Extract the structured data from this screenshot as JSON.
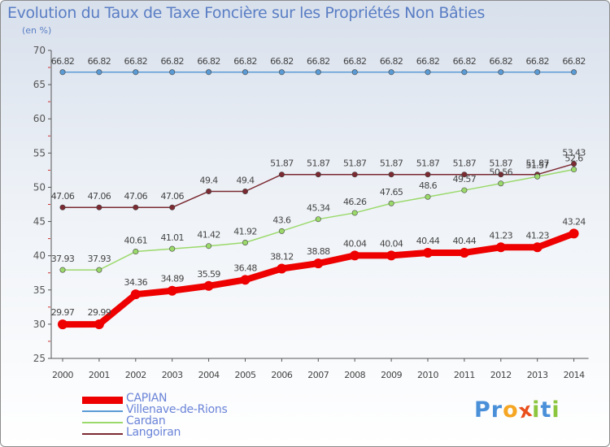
{
  "chart_data": {
    "type": "line",
    "title": "Evolution du Taux de Taxe Foncière sur les Propriétés Non Bâties",
    "unit_label": "(en %)",
    "ylim": [
      25,
      70
    ],
    "yticks": [
      25,
      30,
      35,
      40,
      45,
      50,
      55,
      60,
      65,
      70
    ],
    "categories": [
      "2000",
      "2001",
      "2002",
      "2003",
      "2004",
      "2005",
      "2006",
      "2007",
      "2008",
      "2009",
      "2010",
      "2011",
      "2012",
      "2013",
      "2014"
    ],
    "grid": false,
    "legend_placement": "bottom-left",
    "series": [
      {
        "name": "Villenave-de-Rions",
        "color": "#5b9bd5",
        "values": [
          66.82,
          66.82,
          66.82,
          66.82,
          66.82,
          66.82,
          66.82,
          66.82,
          66.82,
          66.82,
          66.82,
          66.82,
          66.82,
          66.82,
          66.82
        ],
        "labels": [
          "66.82",
          "66.82",
          "66.82",
          "66.82",
          "66.82",
          "66.82",
          "66.82",
          "66.82",
          "66.82",
          "66.82",
          "66.82",
          "66.82",
          "66.82",
          "66.82",
          "66.82"
        ]
      },
      {
        "name": "Langoiran",
        "color": "#7b2a32",
        "values": [
          47.06,
          47.06,
          47.06,
          47.06,
          49.4,
          49.4,
          51.87,
          51.87,
          51.87,
          51.87,
          51.87,
          51.87,
          51.87,
          51.87,
          53.43
        ],
        "labels": [
          "47.06",
          "47.06",
          "47.06",
          "47.06",
          "49.4",
          "49.4",
          "51.87",
          "51.87",
          "51.87",
          "51.87",
          "51.87",
          "51.87",
          "51.87",
          "51.87",
          "53.43"
        ]
      },
      {
        "name": "Cardan",
        "color": "#9bd96b",
        "values": [
          37.93,
          37.93,
          40.61,
          41.01,
          41.42,
          41.92,
          43.6,
          45.34,
          46.26,
          47.65,
          48.6,
          49.57,
          50.56,
          51.57,
          52.6
        ],
        "labels": [
          "37.93",
          "37.93",
          "40.61",
          "41.01",
          "41.42",
          "41.92",
          "43.6",
          "45.34",
          "46.26",
          "47.65",
          "48.6",
          "49.57",
          "50.56",
          "51.57",
          "52.6"
        ]
      },
      {
        "name": "CAPIAN",
        "color": "#ee0000",
        "values": [
          29.97,
          29.99,
          34.36,
          34.89,
          35.59,
          36.48,
          38.12,
          38.88,
          40.04,
          40.04,
          40.44,
          40.44,
          41.23,
          41.23,
          43.24
        ],
        "labels": [
          "29.97",
          "29.99",
          "34.36",
          "34.89",
          "35.59",
          "36.48",
          "38.12",
          "38.88",
          "40.04",
          "40.04",
          "40.44",
          "40.44",
          "41.23",
          "41.23",
          "43.24"
        ]
      }
    ],
    "legend_order": [
      "CAPIAN",
      "Villenave-de-Rions",
      "Cardan",
      "Langoiran"
    ]
  },
  "logo": {
    "letters": [
      "P",
      "r",
      "o",
      "x",
      "i",
      "t",
      "i"
    ],
    "colors": [
      "#4a90d9",
      "#4a90d9",
      "#f5a623",
      "#e94e1b",
      "#8cc63f",
      "#4a90d9",
      "#8cc63f"
    ]
  }
}
